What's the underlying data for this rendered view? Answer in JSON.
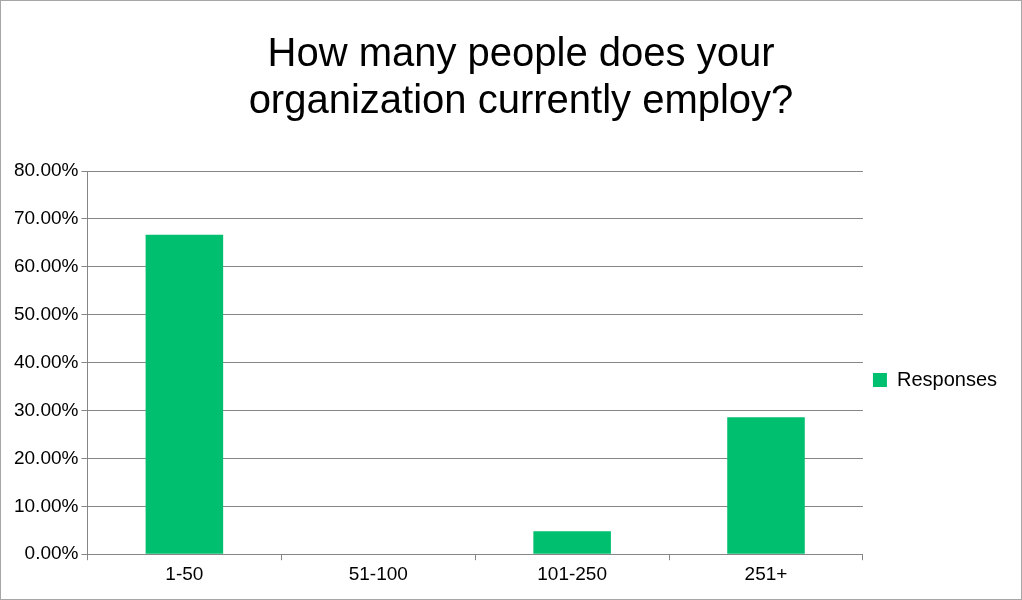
{
  "chart_data": {
    "type": "bar",
    "title": "How many people does your organization currently employ?",
    "categories": [
      "1-50",
      "51-100",
      "101-250",
      "251+"
    ],
    "series": [
      {
        "name": "Responses",
        "color": "#00bf6f",
        "values": [
          66.7,
          0,
          4.8,
          28.6
        ]
      }
    ],
    "ylim": [
      0,
      80
    ],
    "yticks": [
      {
        "value": 0,
        "label": "0.00%"
      },
      {
        "value": 10,
        "label": "10.00%"
      },
      {
        "value": 20,
        "label": "20.00%"
      },
      {
        "value": 30,
        "label": "30.00%"
      },
      {
        "value": 40,
        "label": "40.00%"
      },
      {
        "value": 50,
        "label": "50.00%"
      },
      {
        "value": 60,
        "label": "60.00%"
      },
      {
        "value": 70,
        "label": "70.00%"
      },
      {
        "value": 80,
        "label": "80.00%"
      }
    ],
    "grid": "y",
    "legend": "right"
  }
}
